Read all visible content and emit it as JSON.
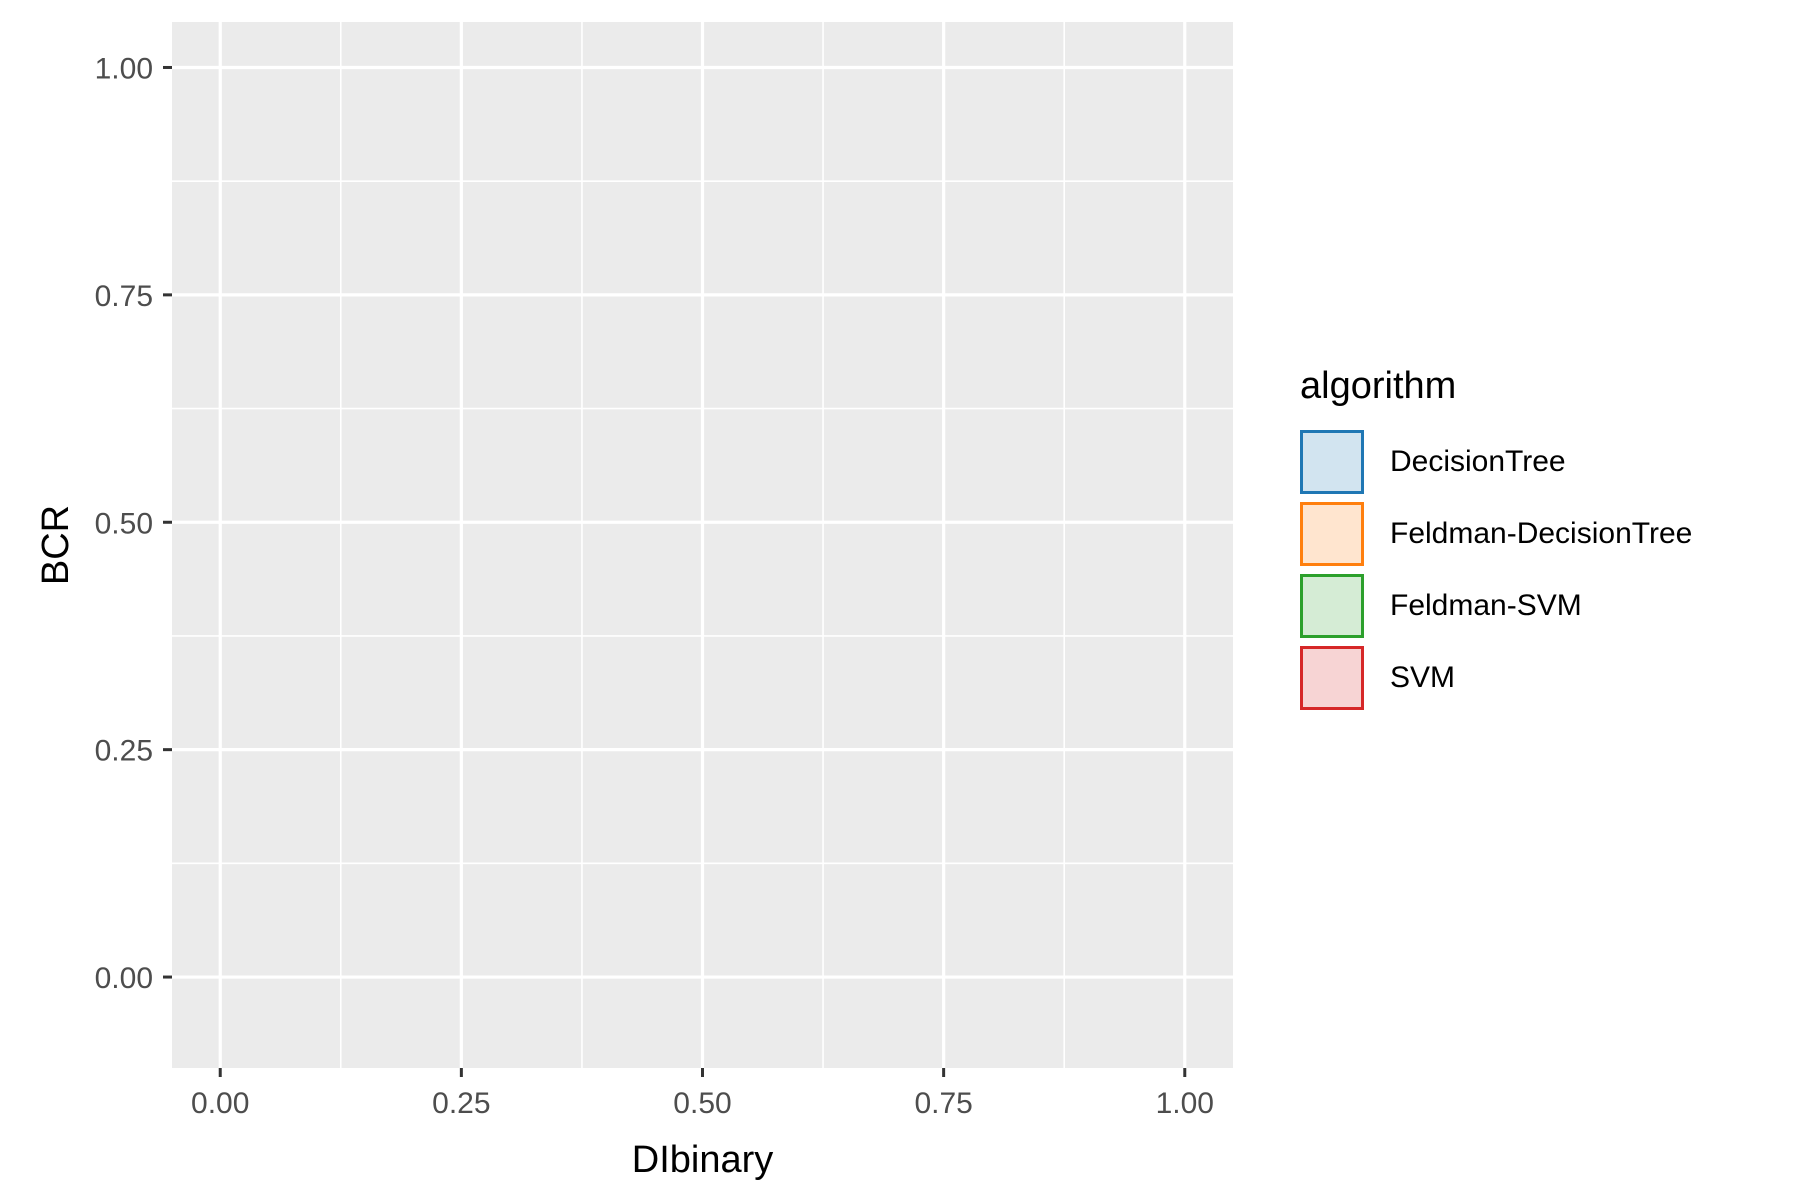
{
  "chart_data": {
    "type": "scatter",
    "title": "",
    "xlabel": "DIbinary",
    "ylabel": "BCR",
    "xlim": [
      -0.05,
      1.05
    ],
    "ylim": [
      -0.1,
      1.05
    ],
    "x_ticks": [
      0.0,
      0.25,
      0.5,
      0.75,
      1.0
    ],
    "x_tick_labels": [
      "0.00",
      "0.25",
      "0.50",
      "0.75",
      "1.00"
    ],
    "y_ticks": [
      0.0,
      0.25,
      0.5,
      0.75,
      1.0
    ],
    "y_tick_labels": [
      "0.00",
      "0.25",
      "0.50",
      "0.75",
      "1.00"
    ],
    "grid": true,
    "panel_background": "#ebebeb",
    "legend": {
      "title": "algorithm",
      "placement": "right",
      "entries": [
        {
          "label": "DecisionTree",
          "color": "#1f77b4"
        },
        {
          "label": "Feldman-DecisionTree",
          "color": "#ff7f0e"
        },
        {
          "label": "Feldman-SVM",
          "color": "#2ca02c"
        },
        {
          "label": "SVM",
          "color": "#d62728"
        }
      ]
    },
    "series": [
      {
        "name": "DecisionTree",
        "points": []
      },
      {
        "name": "Feldman-DecisionTree",
        "points": []
      },
      {
        "name": "Feldman-SVM",
        "points": []
      },
      {
        "name": "SVM",
        "points": []
      }
    ]
  }
}
